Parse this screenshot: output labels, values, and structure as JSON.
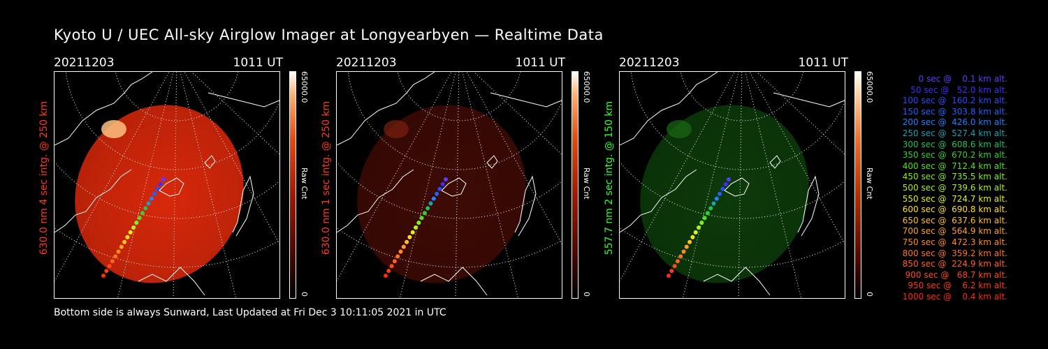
{
  "title": "Kyoto U / UEC All-sky Airglow Imager at Longyearbyen — Realtime Data",
  "footer": "Bottom side is always Sunward, Last Updated at Fri Dec  3 10:11:05 2021 in UTC",
  "panels": [
    {
      "date": "20211203",
      "time": "1011 UT",
      "label": "630.0 nm 4 sec intg. @ 250 km",
      "label_color": "#ff3a1a",
      "cbar_max": "65000.0",
      "cbar_min": "0",
      "cbar_unit": "Raw Cnt",
      "tint": "#d8280a",
      "brightness": 1.0
    },
    {
      "date": "20211203",
      "time": "1011 UT",
      "label": "630.0 nm 1 sec intg. @ 250 km",
      "label_color": "#ff3a1a",
      "cbar_max": "65000.0",
      "cbar_min": "0",
      "cbar_unit": "Raw Cnt",
      "tint": "#3e0a04",
      "brightness": 0.35
    },
    {
      "date": "20211203",
      "time": "1011 UT",
      "label": "557.7 nm 2 sec intg. @ 150 km",
      "label_color": "#33ff33",
      "cbar_max": "65000.0",
      "cbar_min": "0",
      "cbar_unit": "Raw Cnt",
      "tint": "#0c3a0a",
      "brightness": 0.4
    }
  ],
  "legend": [
    {
      "text": "   0 sec @    0.1 km alt.",
      "color": "#5a3cff"
    },
    {
      "text": "  50 sec @   52.0 km alt.",
      "color": "#3b2eff"
    },
    {
      "text": " 100 sec @  160.2 km alt.",
      "color": "#2a4cff"
    },
    {
      "text": " 150 sec @  303.8 km alt.",
      "color": "#2060ff"
    },
    {
      "text": " 200 sec @  426.0 km alt.",
      "color": "#2080ff"
    },
    {
      "text": " 250 sec @  527.4 km alt.",
      "color": "#20a0b0"
    },
    {
      "text": " 300 sec @  608.6 km alt.",
      "color": "#20c060"
    },
    {
      "text": " 350 sec @  670.2 km alt.",
      "color": "#30d030"
    },
    {
      "text": " 400 sec @  712.4 km alt.",
      "color": "#50e020"
    },
    {
      "text": " 450 sec @  735.5 km alt.",
      "color": "#80f020"
    },
    {
      "text": " 500 sec @  739.6 km alt.",
      "color": "#b0f020"
    },
    {
      "text": " 550 sec @  724.7 km alt.",
      "color": "#e0f020"
    },
    {
      "text": " 600 sec @  690.8 km alt.",
      "color": "#ffe020"
    },
    {
      "text": " 650 sec @  637.6 km alt.",
      "color": "#ffc020"
    },
    {
      "text": " 700 sec @  564.9 km alt.",
      "color": "#ffa020"
    },
    {
      "text": " 750 sec @  472.3 km alt.",
      "color": "#ff8a20"
    },
    {
      "text": " 800 sec @  359.2 km alt.",
      "color": "#ff7420"
    },
    {
      "text": " 850 sec @  224.9 km alt.",
      "color": "#ff6020"
    },
    {
      "text": " 900 sec @   68.7 km alt.",
      "color": "#ff4a1a"
    },
    {
      "text": " 950 sec @    6.2 km alt.",
      "color": "#ff3a14"
    },
    {
      "text": "1000 sec @    0.4 km alt.",
      "color": "#ff2a10"
    }
  ]
}
